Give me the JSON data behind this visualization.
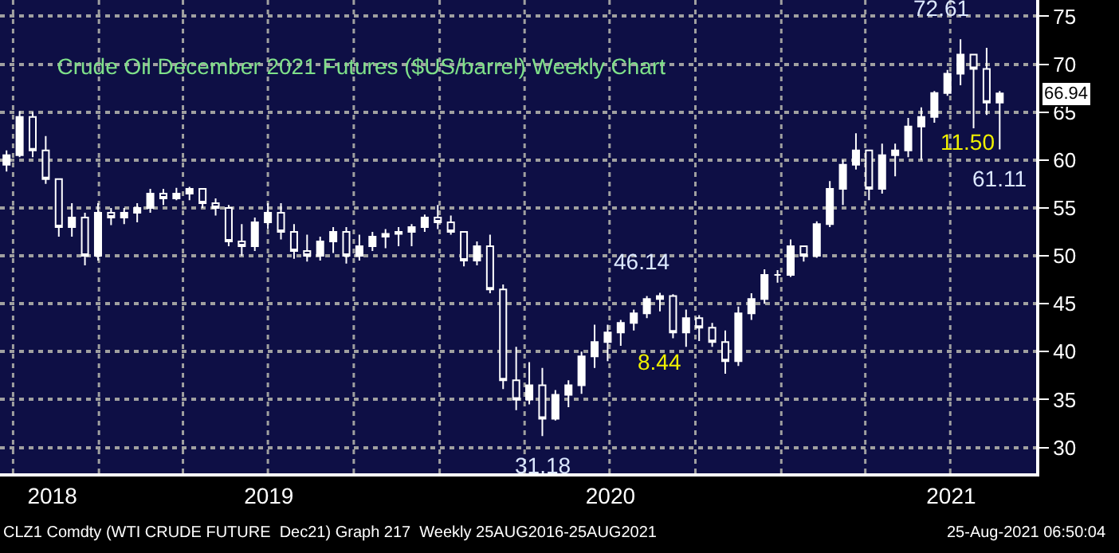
{
  "chart_data": {
    "type": "candlestick",
    "title": "Crude Oil December 2021 Futures ($US/barrel) Weekly Chart",
    "color": "#ffffff",
    "x": [
      "2018-09-24",
      "2018-10-08",
      "2018-10-22",
      "2018-11-05",
      "2018-11-19",
      "2018-12-03",
      "2018-12-17",
      "2018-12-31",
      "2019-01-14",
      "2019-01-28",
      "2019-02-11",
      "2019-02-25",
      "2019-03-11",
      "2019-03-25",
      "2019-04-08",
      "2019-04-22",
      "2019-05-06",
      "2019-05-20",
      "2019-06-03",
      "2019-06-17",
      "2019-07-01",
      "2019-07-15",
      "2019-07-29",
      "2019-08-12",
      "2019-08-26",
      "2019-09-09",
      "2019-09-23",
      "2019-10-07",
      "2019-10-21",
      "2019-11-04",
      "2019-11-18",
      "2019-12-02",
      "2019-12-16",
      "2019-12-30",
      "2020-01-13",
      "2020-01-27",
      "2020-02-10",
      "2020-02-24",
      "2020-03-09",
      "2020-03-23",
      "2020-04-06",
      "2020-04-20",
      "2020-05-04",
      "2020-05-18",
      "2020-06-01",
      "2020-06-15",
      "2020-06-29",
      "2020-07-13",
      "2020-07-27",
      "2020-08-10",
      "2020-08-24",
      "2020-09-07",
      "2020-09-21",
      "2020-10-05",
      "2020-10-19",
      "2020-11-02",
      "2020-11-16",
      "2020-11-30",
      "2020-12-14",
      "2020-12-28",
      "2021-01-11",
      "2021-01-25",
      "2021-02-08",
      "2021-02-22",
      "2021-03-08",
      "2021-03-22",
      "2021-04-05",
      "2021-04-19",
      "2021-05-03",
      "2021-05-17",
      "2021-05-31",
      "2021-06-14",
      "2021-06-28",
      "2021-07-12",
      "2021-07-26",
      "2021-08-09",
      "2021-08-23"
    ],
    "ohlc": [
      [
        59.5,
        61,
        58.8,
        60.5
      ],
      [
        60.5,
        65.1,
        60.3,
        64.5
      ],
      [
        64.5,
        65,
        60.3,
        61
      ],
      [
        61,
        62.5,
        57.5,
        58
      ],
      [
        58,
        58,
        52,
        53
      ],
      [
        53,
        55.5,
        52,
        54
      ],
      [
        54,
        54.5,
        49,
        50
      ],
      [
        50,
        55.5,
        49.5,
        54.5
      ],
      [
        54.5,
        55,
        53.2,
        54
      ],
      [
        54,
        55,
        53.3,
        54.5
      ],
      [
        54.5,
        55.5,
        53.5,
        55
      ],
      [
        55,
        57,
        54.5,
        56.5
      ],
      [
        56.5,
        57,
        55.3,
        56
      ],
      [
        56,
        57.1,
        55.8,
        56.5
      ],
      [
        56.5,
        57.2,
        55.8,
        57
      ],
      [
        57,
        57,
        55,
        55.5
      ],
      [
        55.5,
        56,
        54.2,
        55
      ],
      [
        55,
        55.3,
        51,
        51.5
      ],
      [
        51.5,
        53.3,
        50,
        51
      ],
      [
        51,
        54,
        50.5,
        53.5
      ],
      [
        53.5,
        55.5,
        52.8,
        54.5
      ],
      [
        54.5,
        55.5,
        51.7,
        52.5
      ],
      [
        52.5,
        53.3,
        49.7,
        50.5
      ],
      [
        50.5,
        52.2,
        49.4,
        50
      ],
      [
        50,
        52,
        49.5,
        51.5
      ],
      [
        51.5,
        53,
        50.3,
        52.5
      ],
      [
        52.5,
        53,
        49.2,
        50
      ],
      [
        50,
        52.2,
        49.5,
        51
      ],
      [
        51,
        52.5,
        50.5,
        52
      ],
      [
        52,
        52.8,
        50.8,
        52.3
      ],
      [
        52.3,
        53,
        51,
        52.5
      ],
      [
        52.5,
        53.3,
        51,
        53
      ],
      [
        53,
        54.3,
        52.5,
        54
      ],
      [
        54,
        55.3,
        52.8,
        53.5
      ],
      [
        53.5,
        54.2,
        52.2,
        52.5
      ],
      [
        52.5,
        52.5,
        48.9,
        49.5
      ],
      [
        49.5,
        51.5,
        49,
        51
      ],
      [
        51,
        52.2,
        46.1,
        46.5
      ],
      [
        46.5,
        47,
        36.1,
        37
      ],
      [
        37,
        40.5,
        33.9,
        35
      ],
      [
        35,
        38.9,
        34.5,
        36.5
      ],
      [
        36.5,
        38.3,
        31.18,
        33
      ],
      [
        33,
        36,
        32.8,
        35.5
      ],
      [
        35.5,
        37,
        34.2,
        36.5
      ],
      [
        36.5,
        40,
        35.6,
        39.5
      ],
      [
        39.5,
        42.8,
        38.3,
        41
      ],
      [
        41,
        42.8,
        39,
        42
      ],
      [
        42,
        43.3,
        40.6,
        43
      ],
      [
        43,
        44.4,
        42.2,
        44
      ],
      [
        44,
        45.8,
        43.5,
        45.5
      ],
      [
        45.5,
        46.14,
        44.2,
        45.8
      ],
      [
        45.8,
        46,
        41.4,
        42
      ],
      [
        42,
        44.4,
        40.5,
        43.5
      ],
      [
        43.5,
        43.8,
        41.1,
        42.5
      ],
      [
        42.5,
        43,
        40.5,
        41
      ],
      [
        41,
        42.2,
        37.7,
        39
      ],
      [
        39,
        44.7,
        38.5,
        44
      ],
      [
        44,
        46.1,
        43.3,
        45.5
      ],
      [
        45.5,
        48.6,
        45,
        48
      ],
      [
        48,
        48.5,
        47.2,
        48
      ],
      [
        48,
        51.7,
        47.8,
        51
      ],
      [
        51,
        51,
        49.4,
        50
      ],
      [
        50,
        53.6,
        49.8,
        53.3
      ],
      [
        53.3,
        57.8,
        53,
        57
      ],
      [
        57,
        60,
        55.3,
        59.5
      ],
      [
        59.5,
        62.8,
        59,
        61
      ],
      [
        61,
        61,
        55.8,
        57
      ],
      [
        57,
        61.7,
        56.5,
        60.5
      ],
      [
        60.5,
        61.7,
        58.3,
        61
      ],
      [
        61,
        64.4,
        60.3,
        63.5
      ],
      [
        63.5,
        65.5,
        60,
        64.5
      ],
      [
        64.5,
        67.2,
        63.9,
        67
      ],
      [
        67,
        69.4,
        66.7,
        69
      ],
      [
        69,
        72.61,
        67.8,
        71
      ],
      [
        71,
        71,
        63.3,
        69.5
      ],
      [
        69.5,
        71.7,
        64.7,
        66
      ],
      [
        66,
        67.2,
        61.11,
        66.94
      ]
    ],
    "xlim": [
      "2018-09-17",
      "2021-10-01"
    ],
    "xticks": [
      {
        "value": "2018-10-01",
        "label": null
      },
      {
        "value": "2018-11-12",
        "label": "2018"
      },
      {
        "value": "2019-01-01",
        "label": null
      },
      {
        "value": "2019-04-01",
        "label": null
      },
      {
        "value": "2019-07-01",
        "label": null
      },
      {
        "value": "2019-07-02",
        "label": "2019"
      },
      {
        "value": "2019-10-01",
        "label": null
      },
      {
        "value": "2020-01-01",
        "label": null
      },
      {
        "value": "2020-04-01",
        "label": null
      },
      {
        "value": "2020-07-01",
        "label": null
      },
      {
        "value": "2020-07-02",
        "label": "2020"
      },
      {
        "value": "2020-10-01",
        "label": null
      },
      {
        "value": "2021-01-01",
        "label": null
      },
      {
        "value": "2021-04-01",
        "label": null
      },
      {
        "value": "2021-07-01",
        "label": null
      },
      {
        "value": "2021-07-02",
        "label": "2021"
      }
    ],
    "ylim": [
      27.3,
      76.7
    ],
    "yticks": [
      30,
      35,
      40,
      45,
      50,
      55,
      60,
      65,
      70,
      75
    ],
    "grid": true,
    "annotations": [
      {
        "text": "72.61",
        "x": "2021-07-12",
        "y": 72.61
      },
      {
        "text": "66.94",
        "x": "2021-08-23",
        "y": 66.94
      },
      {
        "text": "61.11",
        "x": "2021-08-23",
        "y": 61.11
      },
      {
        "text": "46.14",
        "x": "2020-08-24",
        "y": 46.14
      },
      {
        "text": "31.18",
        "x": "2020-04-20",
        "y": 31.18
      },
      "11.50",
      "8.44",
      "CLZ1 Comdty (WTI CRUDE FUTURE  Dec21) Graph 217  Weekly 25AUG2016-25AUG2021",
      "25-Aug-2021 06:50:04"
    ]
  }
}
